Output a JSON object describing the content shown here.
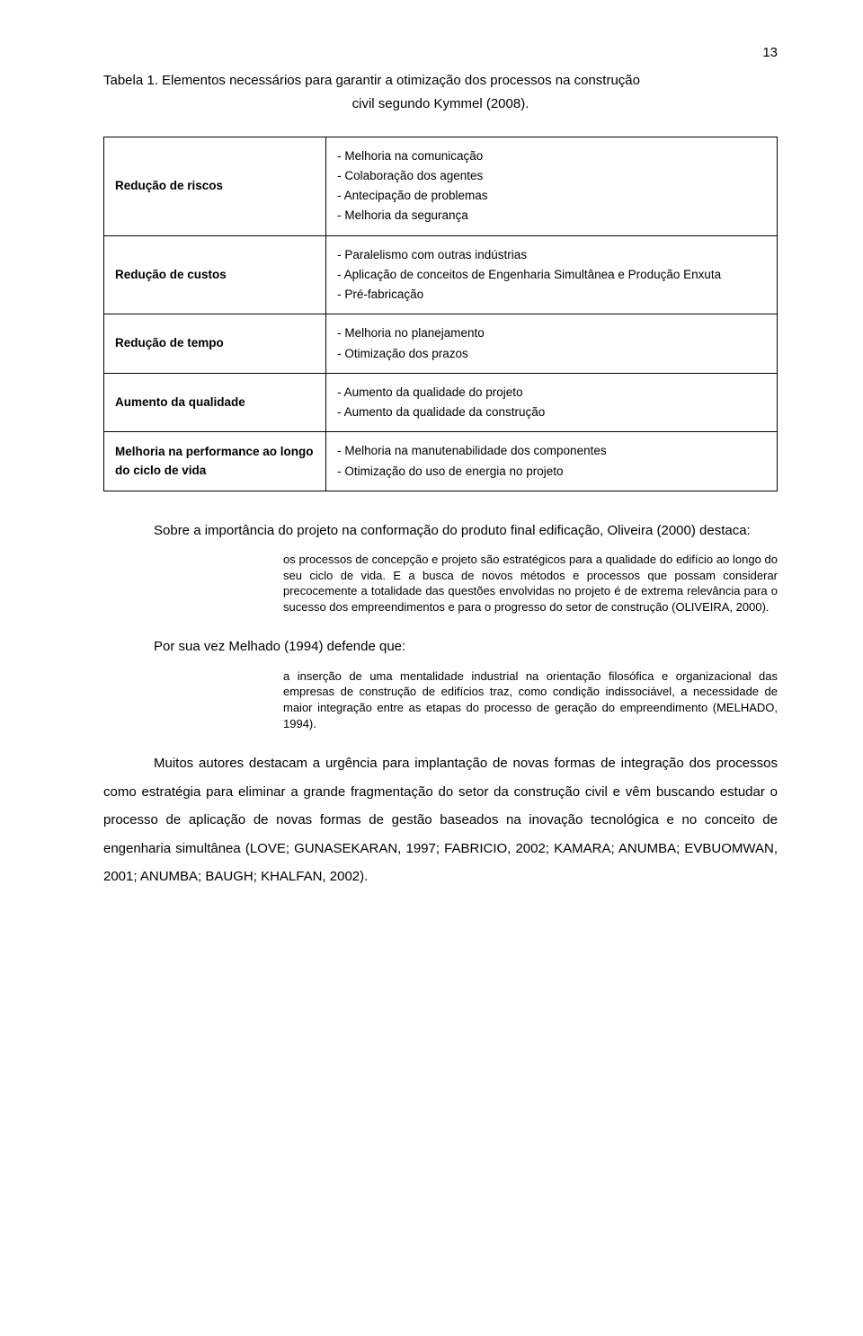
{
  "page_number": "13",
  "caption_line1": "Tabela 1. Elementos necessários para garantir a otimização dos processos na construção",
  "caption_line2": "civil segundo Kymmel (2008).",
  "table": {
    "rows": [
      {
        "label": "Redução de riscos",
        "items": [
          "- Melhoria na comunicação",
          "- Colaboração dos agentes",
          "- Antecipação de problemas",
          "- Melhoria da segurança"
        ]
      },
      {
        "label": "Redução de custos",
        "items": [
          "- Paralelismo com outras indústrias",
          "- Aplicação de conceitos de Engenharia Simultânea e Produção Enxuta",
          "- Pré-fabricação"
        ]
      },
      {
        "label": "Redução de tempo",
        "items": [
          "- Melhoria no planejamento",
          "- Otimização dos prazos"
        ]
      },
      {
        "label": "Aumento da qualidade",
        "items": [
          "- Aumento da qualidade do projeto",
          "- Aumento da qualidade da construção"
        ]
      },
      {
        "label": "Melhoria na performance ao longo do ciclo de vida",
        "items": [
          "- Melhoria na manutenabilidade dos componentes",
          "- Otimização do uso de energia no projeto"
        ]
      }
    ]
  },
  "para1": "Sobre a importância do projeto na conformação do produto final edificação, Oliveira (2000) destaca:",
  "quote1": "os processos de concepção e projeto são estratégicos para a qualidade do edifício ao longo do seu ciclo de vida. E a busca de novos métodos e processos que possam considerar precocemente a totalidade das questões envolvidas no projeto é de extrema relevância para o sucesso dos empreendimentos e para o progresso do setor de construção (OLIVEIRA, 2000).",
  "subhead": "Por sua vez Melhado (1994) defende que:",
  "quote2": "a inserção de uma mentalidade industrial na orientação filosófica e organizacional das empresas de construção de edifícios traz, como condição indissociável, a necessidade de maior integração entre as etapas do processo de geração do empreendimento (MELHADO, 1994).",
  "para2": "Muitos autores destacam a urgência para implantação de novas formas de integração dos processos como estratégia para eliminar a grande fragmentação do setor da construção civil e vêm buscando estudar o processo de aplicação de novas formas de gestão baseados na inovação tecnológica e no conceito de engenharia simultânea (LOVE; GUNASEKARAN, 1997; FABRICIO, 2002; KAMARA; ANUMBA; EVBUOMWAN, 2001; ANUMBA; BAUGH; KHALFAN, 2002)."
}
